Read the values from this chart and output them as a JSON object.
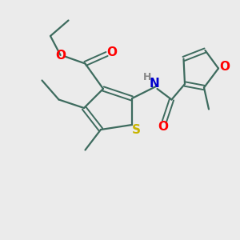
{
  "background_color": "#ebebeb",
  "bond_color": "#3d6b5e",
  "sulfur_color": "#c8b400",
  "oxygen_color": "#ff0000",
  "nitrogen_color": "#0000cc",
  "h_color": "#888888",
  "figsize": [
    3.0,
    3.0
  ],
  "dpi": 100,
  "xlim": [
    0,
    10
  ],
  "ylim": [
    0,
    10
  ]
}
